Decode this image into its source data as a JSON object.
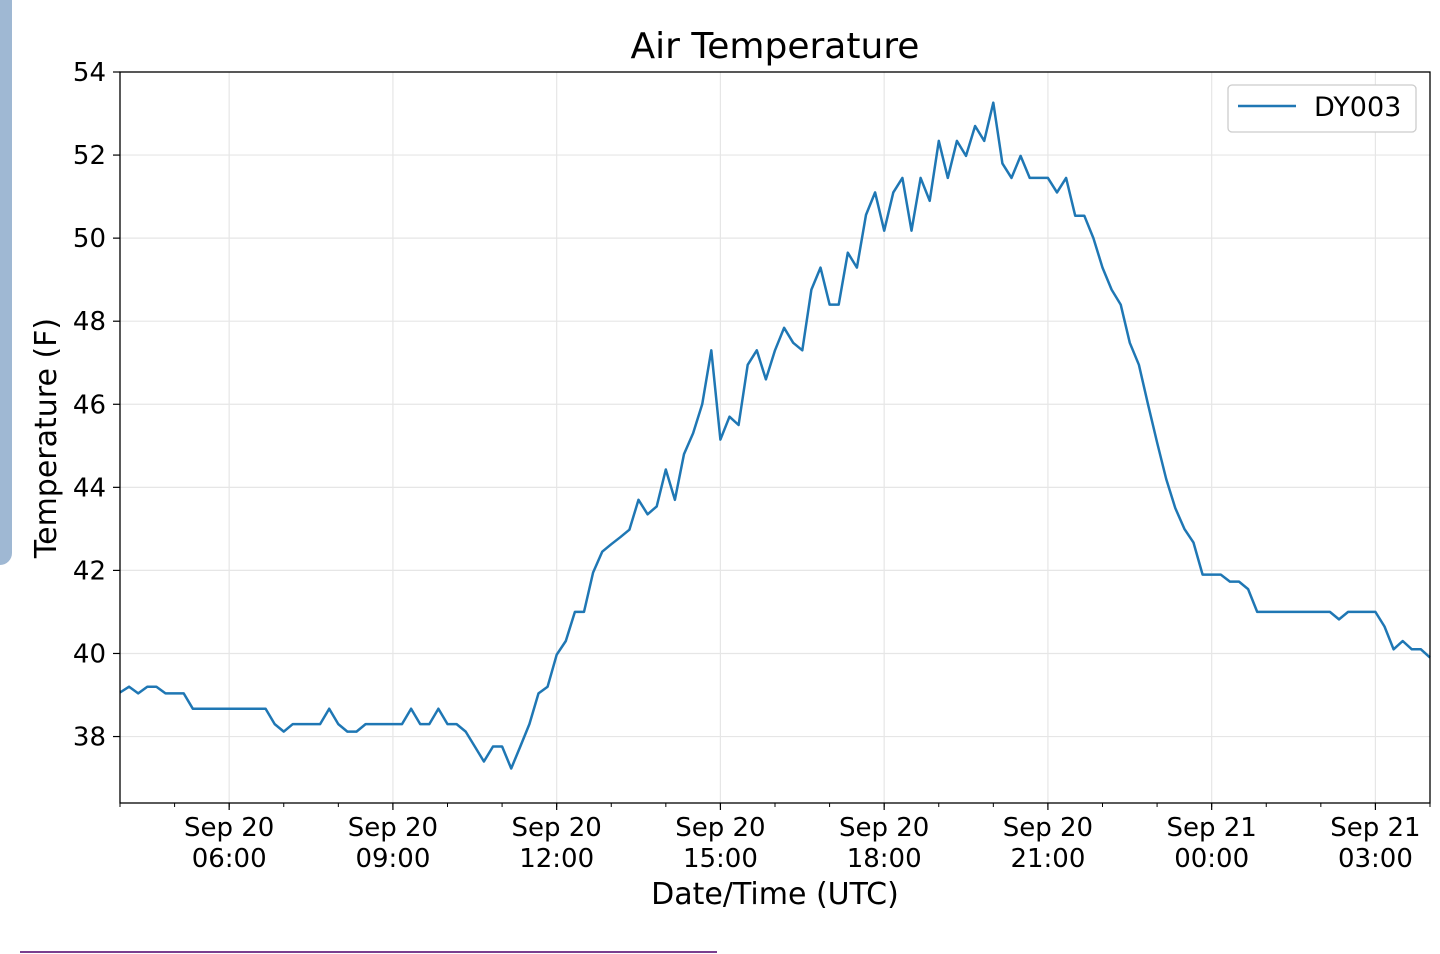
{
  "chart_data": {
    "type": "line",
    "title": "Air Temperature",
    "xlabel": "Date/Time (UTC)",
    "ylabel": "Temperature (F)",
    "x_unit": "hours",
    "xlim": [
      4,
      28
    ],
    "ylim": [
      36.4,
      54
    ],
    "x_start_hour": 4,
    "x_step_minutes": 10,
    "grid": true,
    "legend": {
      "position": "top-right",
      "entries": [
        "DY003"
      ]
    },
    "series_color": "#1f77b4",
    "yticks": [
      38,
      40,
      42,
      44,
      46,
      48,
      50,
      52,
      54
    ],
    "yticklabels": [
      "38",
      "40",
      "42",
      "44",
      "46",
      "48",
      "50",
      "52",
      "54"
    ],
    "xticks": [
      {
        "hour": 6,
        "line1": "Sep 20",
        "line2": "06:00"
      },
      {
        "hour": 9,
        "line1": "Sep 20",
        "line2": "09:00"
      },
      {
        "hour": 12,
        "line1": "Sep 20",
        "line2": "12:00"
      },
      {
        "hour": 15,
        "line1": "Sep 20",
        "line2": "15:00"
      },
      {
        "hour": 18,
        "line1": "Sep 20",
        "line2": "18:00"
      },
      {
        "hour": 21,
        "line1": "Sep 20",
        "line2": "21:00"
      },
      {
        "hour": 24,
        "line1": "Sep 21",
        "line2": "00:00"
      },
      {
        "hour": 27,
        "line1": "Sep 21",
        "line2": "03:00"
      }
    ],
    "series": [
      {
        "name": "DY003",
        "values": [
          39.06,
          39.2,
          39.04,
          39.2,
          39.2,
          39.04,
          39.04,
          39.04,
          38.67,
          38.67,
          38.67,
          38.67,
          38.67,
          38.67,
          38.67,
          38.67,
          38.67,
          38.3,
          38.12,
          38.3,
          38.3,
          38.3,
          38.3,
          38.67,
          38.3,
          38.12,
          38.12,
          38.3,
          38.3,
          38.3,
          38.3,
          38.3,
          38.67,
          38.3,
          38.3,
          38.67,
          38.3,
          38.3,
          38.12,
          37.76,
          37.4,
          37.76,
          37.76,
          37.23,
          37.76,
          38.3,
          39.04,
          39.2,
          39.97,
          40.3,
          41.0,
          41.0,
          41.95,
          42.45,
          42.63,
          42.8,
          42.98,
          43.7,
          43.35,
          43.54,
          44.43,
          43.7,
          44.8,
          45.3,
          46.0,
          47.3,
          45.15,
          45.7,
          45.5,
          46.95,
          47.3,
          46.6,
          47.3,
          47.84,
          47.48,
          47.3,
          48.76,
          49.29,
          48.4,
          48.4,
          49.65,
          49.29,
          50.56,
          51.1,
          50.18,
          51.1,
          51.45,
          50.18,
          51.45,
          50.9,
          52.34,
          51.45,
          52.34,
          51.98,
          52.7,
          52.34,
          53.26,
          51.8,
          51.45,
          51.98,
          51.45,
          51.45,
          51.45,
          51.1,
          51.45,
          50.54,
          50.54,
          50.0,
          49.29,
          48.76,
          48.4,
          47.48,
          46.95,
          46.0,
          45.08,
          44.2,
          43.5,
          43.0,
          42.67,
          41.9,
          41.9,
          41.9,
          41.73,
          41.73,
          41.55,
          41.0,
          41.0,
          41.0,
          41.0,
          41.0,
          41.0,
          41.0,
          41.0,
          41.0,
          40.82,
          41.0,
          41.0,
          41.0,
          41.0,
          40.65,
          40.1,
          40.3,
          40.1,
          40.1,
          39.9
        ]
      }
    ]
  }
}
